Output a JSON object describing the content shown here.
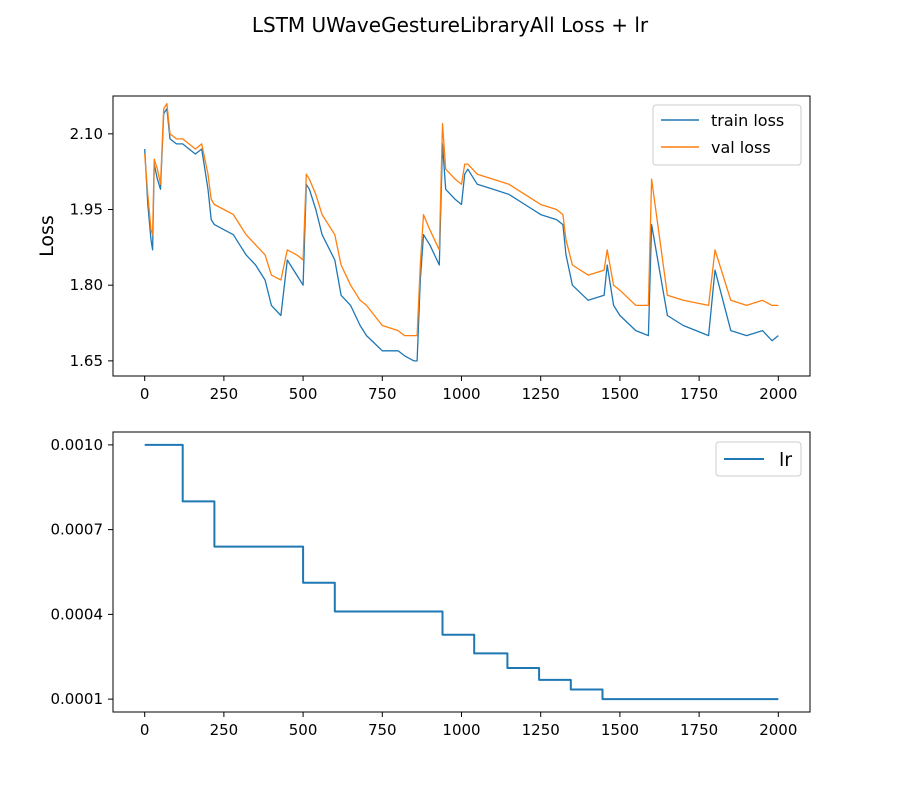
{
  "figure": {
    "title": "LSTM UWaveGestureLibraryAll Loss + lr"
  },
  "colors": {
    "train": "#1f77b4",
    "val": "#ff7f0e",
    "lr": "#1f77b4",
    "axis": "#000000",
    "legend_border": "#cccccc"
  },
  "chart_data": [
    {
      "type": "line",
      "title": "",
      "xlabel": "",
      "ylabel": "Loss",
      "xlim": [
        -100,
        2100
      ],
      "ylim": [
        1.62,
        2.175
      ],
      "xticks": [
        0,
        250,
        500,
        750,
        1000,
        1250,
        1500,
        1750,
        2000
      ],
      "xtick_labels": [
        "0",
        "250",
        "500",
        "750",
        "1000",
        "1250",
        "1500",
        "1750",
        "2000"
      ],
      "yticks": [
        1.65,
        1.8,
        1.95,
        2.1
      ],
      "ytick_labels": [
        "1.65",
        "1.80",
        "1.95",
        "2.10"
      ],
      "legend": "top-right",
      "grid": false,
      "series": [
        {
          "name": "train loss",
          "color_key": "train",
          "x": [
            0,
            10,
            20,
            25,
            30,
            40,
            50,
            60,
            70,
            80,
            100,
            120,
            140,
            160,
            180,
            200,
            210,
            220,
            250,
            280,
            300,
            320,
            350,
            380,
            400,
            430,
            450,
            480,
            500,
            510,
            520,
            540,
            560,
            600,
            620,
            650,
            680,
            700,
            750,
            800,
            820,
            850,
            860,
            870,
            880,
            900,
            930,
            940,
            950,
            980,
            1000,
            1010,
            1020,
            1050,
            1100,
            1150,
            1200,
            1250,
            1300,
            1320,
            1330,
            1350,
            1400,
            1450,
            1460,
            1480,
            1500,
            1550,
            1590,
            1600,
            1650,
            1700,
            1780,
            1800,
            1850,
            1900,
            1950,
            1980,
            2000
          ],
          "y": [
            2.07,
            1.96,
            1.89,
            1.87,
            2.04,
            2.01,
            1.99,
            2.14,
            2.15,
            2.09,
            2.08,
            2.08,
            2.07,
            2.06,
            2.07,
            1.99,
            1.93,
            1.92,
            1.91,
            1.9,
            1.88,
            1.86,
            1.84,
            1.81,
            1.76,
            1.74,
            1.85,
            1.82,
            1.8,
            2.0,
            1.99,
            1.95,
            1.9,
            1.85,
            1.78,
            1.76,
            1.72,
            1.7,
            1.67,
            1.67,
            1.66,
            1.65,
            1.65,
            1.81,
            1.9,
            1.88,
            1.84,
            2.08,
            1.99,
            1.97,
            1.96,
            2.02,
            2.03,
            2.0,
            1.99,
            1.98,
            1.96,
            1.94,
            1.93,
            1.92,
            1.86,
            1.8,
            1.77,
            1.78,
            1.84,
            1.76,
            1.74,
            1.71,
            1.7,
            1.92,
            1.74,
            1.72,
            1.7,
            1.83,
            1.71,
            1.7,
            1.71,
            1.69,
            1.7
          ]
        },
        {
          "name": "val loss",
          "color_key": "val",
          "x": [
            0,
            10,
            20,
            25,
            30,
            40,
            50,
            60,
            70,
            80,
            100,
            120,
            140,
            160,
            180,
            200,
            210,
            220,
            250,
            280,
            300,
            320,
            350,
            380,
            400,
            430,
            450,
            480,
            500,
            510,
            520,
            540,
            560,
            600,
            620,
            650,
            680,
            700,
            750,
            800,
            820,
            850,
            860,
            870,
            880,
            900,
            930,
            940,
            950,
            980,
            1000,
            1010,
            1020,
            1050,
            1100,
            1150,
            1200,
            1250,
            1300,
            1320,
            1330,
            1350,
            1400,
            1450,
            1460,
            1480,
            1500,
            1550,
            1590,
            1600,
            1650,
            1700,
            1780,
            1800,
            1850,
            1900,
            1950,
            1980,
            2000
          ],
          "y": [
            2.06,
            1.98,
            1.91,
            1.9,
            2.05,
            2.03,
            2.0,
            2.15,
            2.16,
            2.1,
            2.09,
            2.09,
            2.08,
            2.07,
            2.08,
            2.02,
            1.97,
            1.96,
            1.95,
            1.94,
            1.92,
            1.9,
            1.88,
            1.86,
            1.82,
            1.81,
            1.87,
            1.86,
            1.85,
            2.02,
            2.01,
            1.98,
            1.94,
            1.9,
            1.84,
            1.8,
            1.77,
            1.76,
            1.72,
            1.71,
            1.7,
            1.7,
            1.7,
            1.84,
            1.94,
            1.91,
            1.87,
            2.12,
            2.03,
            2.01,
            2.0,
            2.04,
            2.04,
            2.02,
            2.01,
            2.0,
            1.98,
            1.96,
            1.95,
            1.94,
            1.89,
            1.84,
            1.82,
            1.83,
            1.87,
            1.8,
            1.79,
            1.76,
            1.76,
            2.01,
            1.78,
            1.77,
            1.76,
            1.87,
            1.77,
            1.76,
            1.77,
            1.76,
            1.76
          ]
        }
      ]
    },
    {
      "type": "line",
      "title": "",
      "xlabel": "",
      "ylabel": "",
      "xlim": [
        -100,
        2100
      ],
      "ylim": [
        5.44e-05,
        0.0010456
      ],
      "xticks": [
        0,
        250,
        500,
        750,
        1000,
        1250,
        1500,
        1750,
        2000
      ],
      "xtick_labels": [
        "0",
        "250",
        "500",
        "750",
        "1000",
        "1250",
        "1500",
        "1750",
        "2000"
      ],
      "yticks": [
        0.0001,
        0.0004,
        0.0007,
        0.001
      ],
      "ytick_labels": [
        "0.0001",
        "0.0004",
        "0.0007",
        "0.0010"
      ],
      "legend": "top-right",
      "grid": false,
      "series": [
        {
          "name": "lr",
          "color_key": "lr",
          "step": true,
          "x": [
            0,
            120,
            220,
            500,
            600,
            940,
            1040,
            1145,
            1245,
            1345,
            1445,
            2000
          ],
          "y": [
            0.001,
            0.0008,
            0.00064,
            0.000512,
            0.00041,
            0.000328,
            0.000262,
            0.00021,
            0.000168,
            0.000134,
            0.0001,
            0.0001
          ]
        }
      ]
    }
  ]
}
